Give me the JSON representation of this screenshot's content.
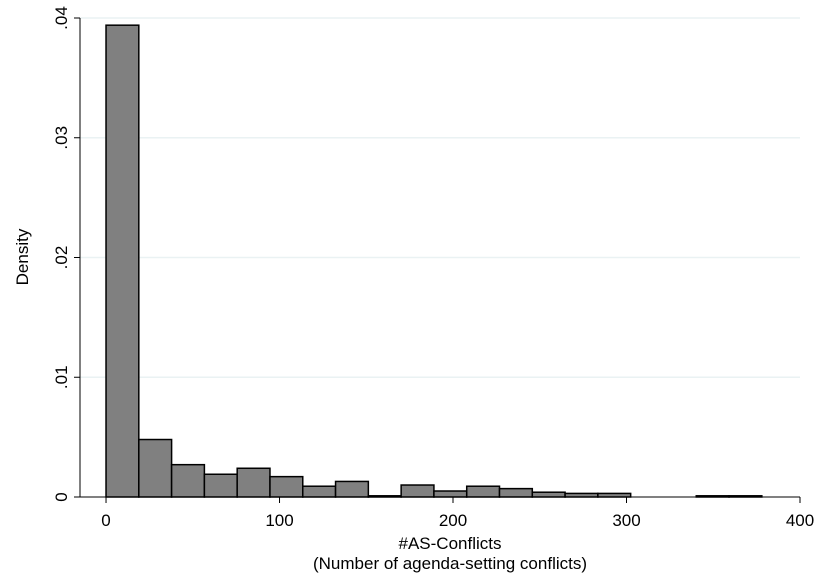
{
  "chart_data": {
    "type": "bar",
    "subtype": "histogram",
    "xlabel": "#AS-Conflicts",
    "xlabel_sub": "(Number of agenda-setting conflicts)",
    "ylabel": "Density",
    "xlim": [
      -15,
      400
    ],
    "ylim": [
      0,
      0.04
    ],
    "x_ticks": [
      0,
      100,
      200,
      300,
      400
    ],
    "x_tick_labels": [
      "0",
      "100",
      "200",
      "300",
      "400"
    ],
    "y_ticks": [
      0,
      0.01,
      0.02,
      0.03,
      0.04
    ],
    "y_tick_labels": [
      "0",
      ".01",
      ".02",
      ".03",
      ".04"
    ],
    "grid": "horizontal",
    "bin_width": 18.9,
    "bin_start": 0,
    "values": [
      0.0394,
      0.0048,
      0.0027,
      0.0019,
      0.0024,
      0.0017,
      0.0009,
      0.0013,
      0.0001,
      0.001,
      0.0005,
      0.0009,
      0.0007,
      0.0004,
      0.0003,
      0.0003,
      0.0,
      0.0,
      0.0001,
      0.0001,
      0.0,
      0.0,
      0.0,
      0.0001,
      0.0
    ]
  },
  "colors": {
    "bar_fill": "#808080",
    "bar_stroke": "#000000",
    "grid": "#eaf2f3",
    "axis": "#000000"
  }
}
